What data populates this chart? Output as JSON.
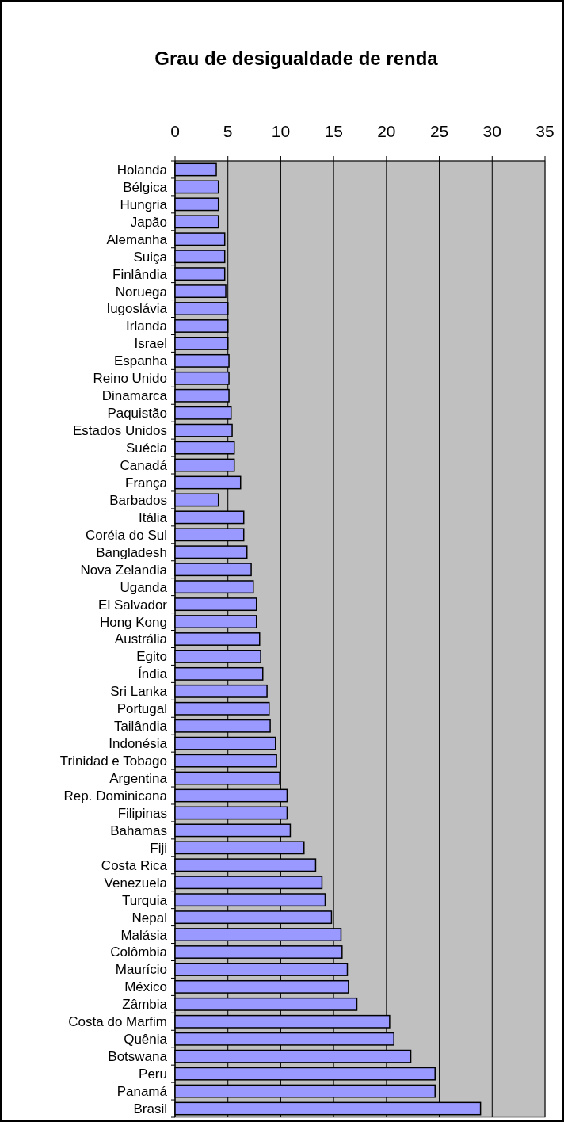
{
  "chart_data": {
    "type": "bar",
    "orientation": "horizontal",
    "title": "Grau de desigualdade de renda",
    "categories": [
      "Holanda",
      "Bélgica",
      "Hungria",
      "Japão",
      "Alemanha",
      "Suiça",
      "Finlândia",
      "Noruega",
      "Iugoslávia",
      "Irlanda",
      "Israel",
      "Espanha",
      "Reino Unido",
      "Dinamarca",
      "Paquistão",
      "Estados Unidos",
      "Suécia",
      "Canadá",
      "França",
      "Barbados",
      "Itália",
      "Coréia do Sul",
      "Bangladesh",
      "Nova Zelandia",
      "Uganda",
      "El Salvador",
      "Hong Kong",
      "Austrália",
      "Egito",
      "Índia",
      "Sri Lanka",
      "Portugal",
      "Tailândia",
      "Indonésia",
      "Trinidad e Tobago",
      "Argentina",
      "Rep. Dominicana",
      "Filipinas",
      "Bahamas",
      "Fiji",
      "Costa Rica",
      "Venezuela",
      "Turquia",
      "Nepal",
      "Malásia",
      "Colômbia",
      "Maurício",
      "México",
      "Zâmbia",
      "Costa do Marfim",
      "Quênia",
      "Botswana",
      "Peru",
      "Panamá",
      "Brasil"
    ],
    "values": [
      3.9,
      4.1,
      4.1,
      4.1,
      4.7,
      4.7,
      4.7,
      4.8,
      5.0,
      5.0,
      5.0,
      5.1,
      5.1,
      5.1,
      5.3,
      5.4,
      5.6,
      5.6,
      6.2,
      4.1,
      6.5,
      6.5,
      6.8,
      7.2,
      7.4,
      7.7,
      7.7,
      8.0,
      8.1,
      8.3,
      8.7,
      8.9,
      9.0,
      9.5,
      9.6,
      9.9,
      10.6,
      10.6,
      10.9,
      12.2,
      13.3,
      13.9,
      14.2,
      14.8,
      15.7,
      15.8,
      16.3,
      16.4,
      17.2,
      20.3,
      20.7,
      22.3,
      24.6,
      24.6,
      28.9
    ],
    "color": "#9999ff",
    "xlim": [
      0,
      35
    ],
    "xticks": [
      0,
      5,
      10,
      15,
      20,
      25,
      30,
      35
    ],
    "grid": "x"
  }
}
